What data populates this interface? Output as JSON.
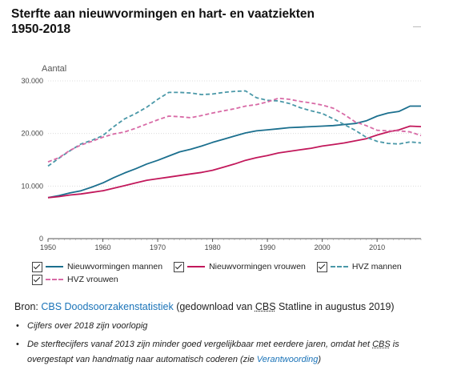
{
  "title_line1": "Sterfte aan nieuwvormingen en hart- en vaatziekten",
  "title_line2": "1950-2018",
  "chart_data": {
    "type": "line",
    "ylabel": "Aantal",
    "ylim": [
      0,
      30000
    ],
    "xlim": [
      1950,
      2018
    ],
    "y_ticks": [
      0,
      10000,
      20000,
      30000
    ],
    "y_tick_labels": [
      "0",
      "10.000",
      "20.000",
      "30.000"
    ],
    "x_ticks": [
      1950,
      1960,
      1970,
      1980,
      1990,
      2000,
      2010
    ],
    "x_tick_labels": [
      "1950",
      "1960",
      "1970",
      "1980",
      "1990",
      "2000",
      "2010"
    ],
    "grid": true,
    "legend_position": "bottom",
    "x": [
      1950,
      1952,
      1954,
      1956,
      1958,
      1960,
      1962,
      1964,
      1966,
      1968,
      1970,
      1972,
      1974,
      1976,
      1978,
      1980,
      1982,
      1984,
      1986,
      1988,
      1990,
      1992,
      1994,
      1996,
      1998,
      2000,
      2002,
      2004,
      2006,
      2008,
      2010,
      2012,
      2014,
      2016,
      2018
    ],
    "series": [
      {
        "name": "Nieuwvormingen mannen",
        "color": "#1b6f8e",
        "dash": "solid",
        "values": [
          7800,
          8200,
          8700,
          9100,
          9800,
          10600,
          11600,
          12500,
          13300,
          14200,
          14900,
          15700,
          16500,
          17000,
          17600,
          18300,
          18900,
          19500,
          20100,
          20500,
          20700,
          20900,
          21100,
          21200,
          21300,
          21400,
          21500,
          21700,
          21900,
          22400,
          23300,
          23900,
          24200,
          25200,
          25200
        ]
      },
      {
        "name": "Nieuwvormingen vrouwen",
        "color": "#c2185b",
        "dash": "solid",
        "values": [
          7800,
          8000,
          8300,
          8500,
          8800,
          9100,
          9600,
          10100,
          10600,
          11100,
          11400,
          11700,
          12000,
          12300,
          12600,
          13000,
          13600,
          14200,
          14900,
          15400,
          15800,
          16300,
          16600,
          16900,
          17200,
          17600,
          17900,
          18200,
          18600,
          19000,
          19700,
          20300,
          20700,
          21400,
          21300
        ]
      },
      {
        "name": "HVZ mannen",
        "color": "#4a98a8",
        "dash": "dashed",
        "values": [
          13800,
          15300,
          16700,
          18000,
          18700,
          19600,
          21300,
          22800,
          23800,
          25000,
          26500,
          27800,
          27800,
          27700,
          27400,
          27500,
          27800,
          28000,
          28100,
          26800,
          26300,
          26200,
          25700,
          24900,
          24300,
          23800,
          22800,
          21700,
          20600,
          19300,
          18500,
          18100,
          18000,
          18400,
          18200
        ]
      },
      {
        "name": "HVZ vrouwen",
        "color": "#d86aa6",
        "dash": "dashed",
        "values": [
          14600,
          15400,
          16800,
          17800,
          18500,
          19300,
          19900,
          20300,
          21000,
          21800,
          22600,
          23300,
          23200,
          23000,
          23400,
          23900,
          24300,
          24700,
          25200,
          25500,
          26000,
          26700,
          26500,
          26100,
          25800,
          25400,
          24800,
          23600,
          22200,
          21500,
          20600,
          20500,
          20500,
          20300,
          19600
        ]
      }
    ]
  },
  "source": {
    "prefix": "Bron: ",
    "link_text": "CBS Doodsoorzakenstatistiek",
    "middle": " (gedownload van ",
    "cbs": "CBS",
    "suffix": " Statline in augustus 2019)"
  },
  "notes": {
    "note1": "Cijfers over 2018 zijn voorlopig",
    "note2_a": "De sterftecijfers vanaf 2013 zijn minder goed vergelijkbaar met eerdere jaren, omdat het ",
    "note2_cbs": "CBS",
    "note2_b": " is overgestapt van handmatig naar automatisch coderen (zie ",
    "note2_link": "Verantwoording",
    "note2_c": ")"
  }
}
